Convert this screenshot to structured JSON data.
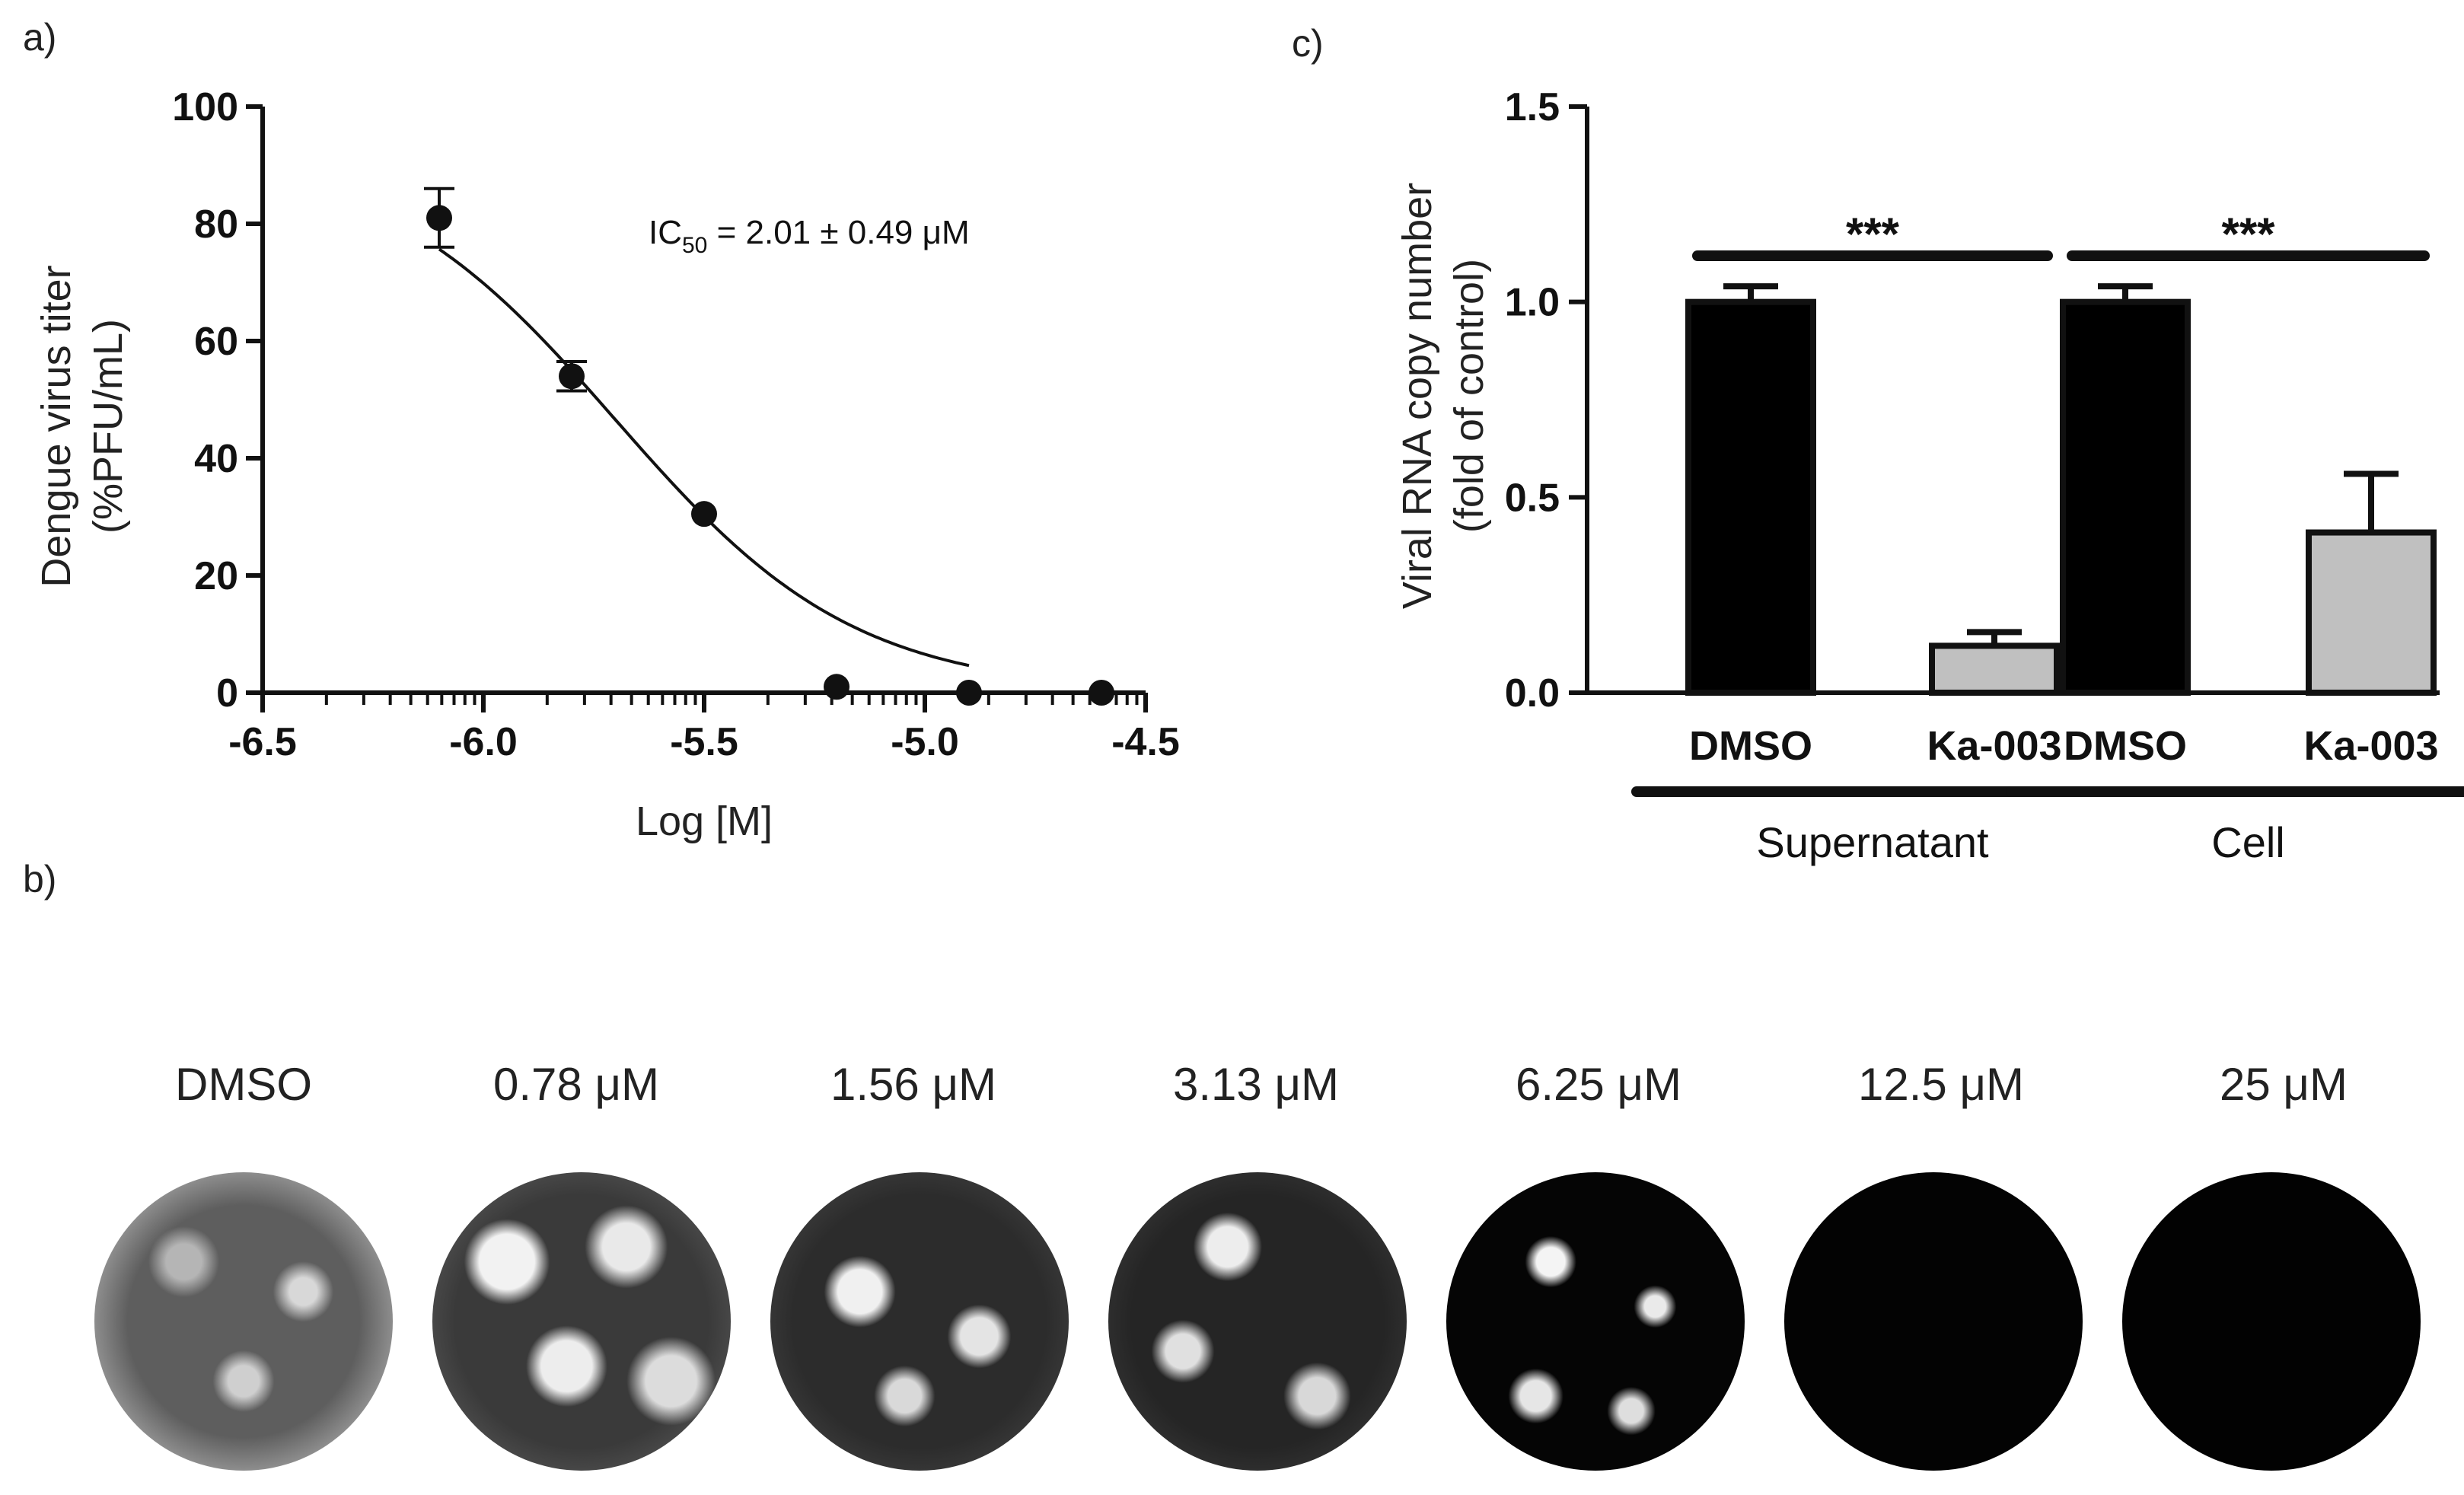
{
  "panel_labels": {
    "a": "a)",
    "b": "b)",
    "c": "c)"
  },
  "chart_data": [
    {
      "id": "a",
      "type": "scatter",
      "title": "",
      "xlabel": "Log [M]",
      "ylabel_line1": "Dengue virus titer",
      "ylabel_line2": "(%PFU/mL)",
      "xlim": [
        -6.5,
        -4.5
      ],
      "ylim": [
        0,
        100
      ],
      "xticks": [
        "-6.5",
        "-6.0",
        "-5.5",
        "-5.0",
        "-4.5"
      ],
      "yticks": [
        "0",
        "20",
        "40",
        "60",
        "80",
        "100"
      ],
      "x": [
        -6.1,
        -5.8,
        -5.5,
        -5.2,
        -4.9,
        -4.6
      ],
      "y": [
        81,
        54,
        30.5,
        1,
        0,
        0
      ],
      "err": [
        5,
        2.5,
        0,
        0,
        0,
        0
      ],
      "fit": {
        "top": 93,
        "bottom": 0,
        "logIC50": -5.7,
        "hill": 1.6
      },
      "annotation": {
        "prefix": "IC",
        "subscript": "50",
        "suffix": " = 2.01 ± 0.49 μM"
      }
    },
    {
      "id": "c",
      "type": "bar",
      "title": "",
      "ylabel_line1": "Viral RNA copy number",
      "ylabel_line2": "(fold of control)",
      "ylim": [
        0,
        1.5
      ],
      "yticks": [
        "0.0",
        "0.5",
        "1.0",
        "1.5"
      ],
      "categories": [
        "DMSO",
        "Ka-003",
        "DMSO",
        "Ka-003"
      ],
      "values": [
        1.0,
        0.12,
        1.0,
        0.41
      ],
      "errors": [
        0.04,
        0.035,
        0.04,
        0.15
      ],
      "colors": [
        "#000000",
        "#c0c0c0",
        "#000000",
        "#c0c0c0"
      ],
      "groups": [
        "Supernatant",
        "Cell"
      ],
      "significance": "***"
    }
  ],
  "plaque_panel": {
    "labels": [
      "DMSO",
      "0.78 μM",
      "1.56 μM",
      "3.13 μM",
      "6.25 μM",
      "12.5 μM",
      "25 μM"
    ]
  }
}
